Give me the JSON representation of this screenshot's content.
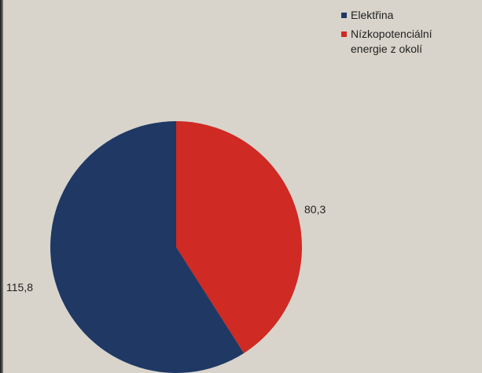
{
  "chart_data": {
    "type": "pie",
    "categories": [
      "Elektřina",
      "Nízkopotenciální energie z okolí"
    ],
    "values": [
      115.8,
      80.3
    ],
    "value_labels": [
      "115,8",
      "80,3"
    ],
    "colors": [
      "#1f3864",
      "#cf2a23"
    ],
    "start_angle_deg": 0,
    "direction": "clockwise",
    "legend_position": "top-right",
    "data_label_position": "outside"
  },
  "legend": {
    "items": [
      {
        "label": "Elektřina",
        "color": "#1f3864"
      },
      {
        "label": "Nízkopotenciální energie z okolí",
        "color": "#cf2a23"
      }
    ]
  }
}
